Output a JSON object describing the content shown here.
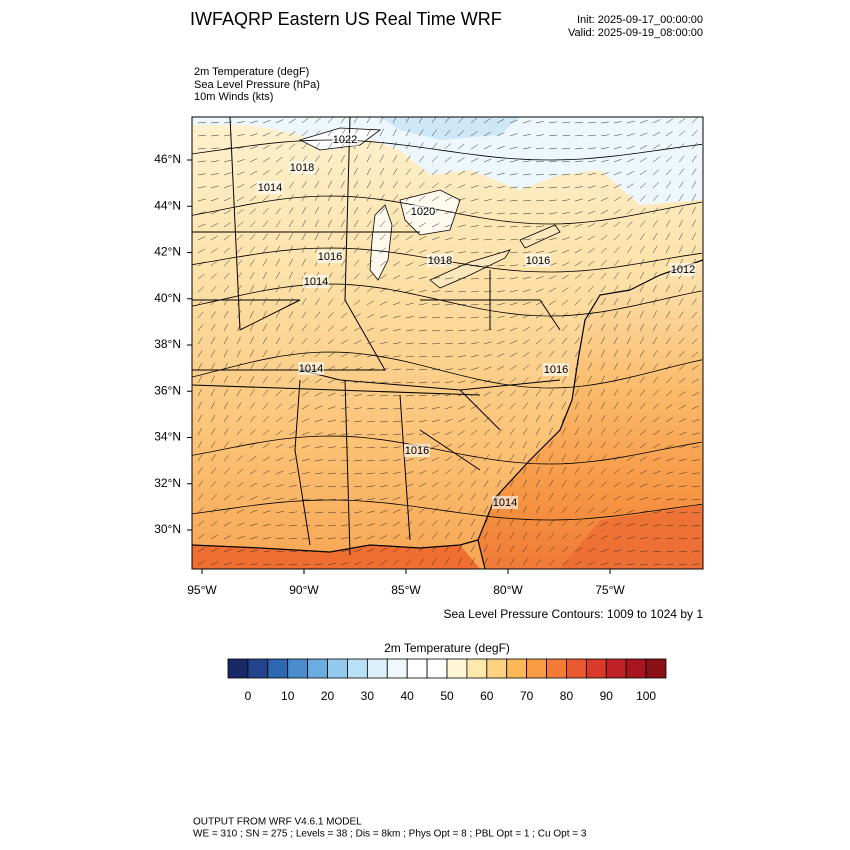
{
  "header": {
    "title": "IWFAQRP Eastern US Real Time WRF",
    "init": "Init: 2025-09-17_00:00:00",
    "valid": "Valid: 2025-09-19_08:00:00"
  },
  "fields": [
    "2m Temperature   (degF)",
    "Sea Level Pressure   (hPa)",
    "10m Winds   (kts)"
  ],
  "map": {
    "lon_ticks": [
      {
        "value": -95,
        "label": "95°W"
      },
      {
        "value": -90,
        "label": "90°W"
      },
      {
        "value": -85,
        "label": "85°W"
      },
      {
        "value": -80,
        "label": "80°W"
      },
      {
        "value": -75,
        "label": "75°W"
      }
    ],
    "lat_ticks": [
      {
        "value": 46,
        "label": "46°N"
      },
      {
        "value": 44,
        "label": "44°N"
      },
      {
        "value": 42,
        "label": "42°N"
      },
      {
        "value": 40,
        "label": "40°N"
      },
      {
        "value": 38,
        "label": "38°N"
      },
      {
        "value": 36,
        "label": "36°N"
      },
      {
        "value": 34,
        "label": "34°N"
      },
      {
        "value": 32,
        "label": "32°N"
      },
      {
        "value": 30,
        "label": "30°N"
      }
    ],
    "contour_labels": [
      "1022",
      "1018",
      "1014",
      "1020",
      "1016",
      "1018",
      "1016",
      "1012",
      "1014",
      "1014",
      "1016",
      "1016",
      "1014"
    ],
    "contour_note": "Sea Level Pressure Contours: 1009 to 1024 by 1"
  },
  "colorbar": {
    "title": "2m Temperature  (degF)",
    "lim": [
      -5,
      105
    ],
    "ticks": [
      0,
      10,
      20,
      30,
      40,
      50,
      60,
      70,
      80,
      90,
      100
    ],
    "colors": [
      "#172a66",
      "#24438e",
      "#2e68b2",
      "#4a8dcf",
      "#6aadde",
      "#92cbed",
      "#b8e1f6",
      "#dbf0fa",
      "#eff9fd",
      "#ffffff",
      "#ffffff",
      "#fff6d6",
      "#fee8ad",
      "#fdd283",
      "#fcb757",
      "#f99b43",
      "#f37b35",
      "#e95b2e",
      "#d83b29",
      "#c02124",
      "#a7151e",
      "#8a1016"
    ]
  },
  "footer": {
    "line1": "OUTPUT FROM WRF V4.6.1 MODEL",
    "line2": "WE = 310 ; SN = 275 ; Levels = 38 ; Dis = 8km ; Phys Opt = 8 ; PBL Opt = 1 ; Cu Opt = 3"
  }
}
